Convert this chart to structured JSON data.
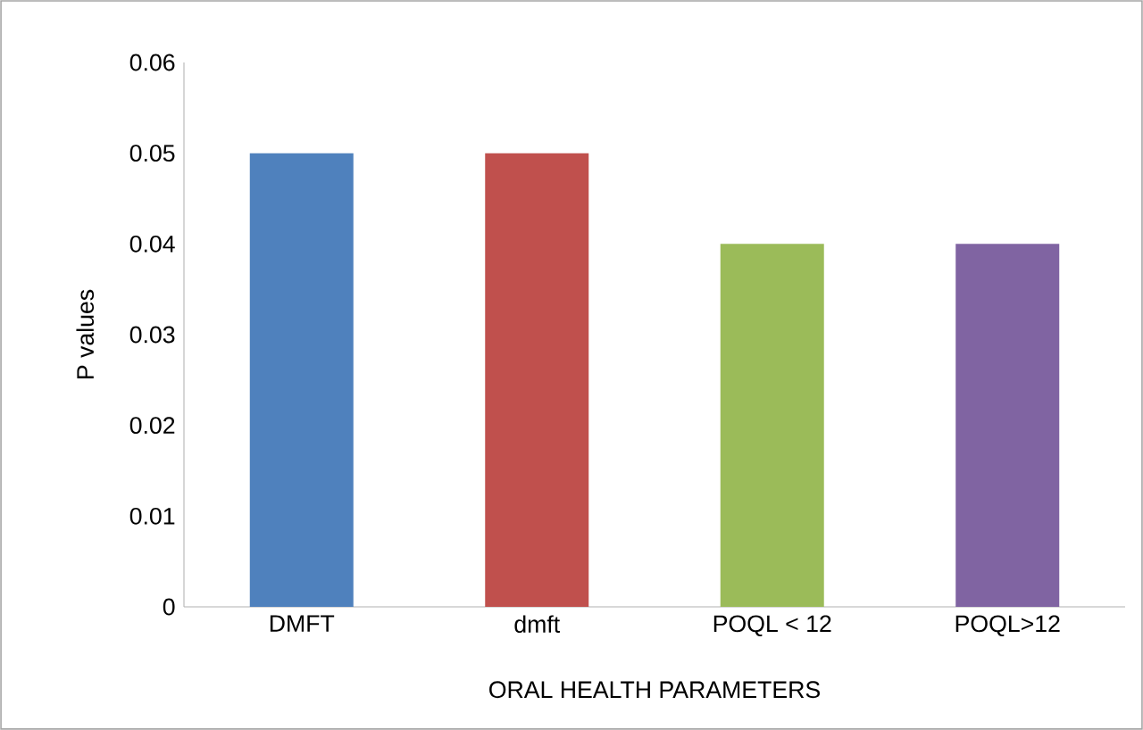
{
  "chart_data": {
    "type": "bar",
    "xlabel": "ORAL HEALTH PARAMETERS",
    "ylabel": "P values",
    "categories": [
      "DMFT",
      "dmft",
      "POQL < 12",
      "POQL>12"
    ],
    "values": [
      0.05,
      0.05,
      0.04,
      0.04
    ],
    "colors": [
      "#4f81bd",
      "#c0504d",
      "#9bbb59",
      "#8064a2"
    ],
    "ylim": [
      0,
      0.06
    ],
    "yticks": [
      0,
      0.01,
      0.02,
      0.03,
      0.04,
      0.05,
      0.06
    ],
    "grid": false
  }
}
